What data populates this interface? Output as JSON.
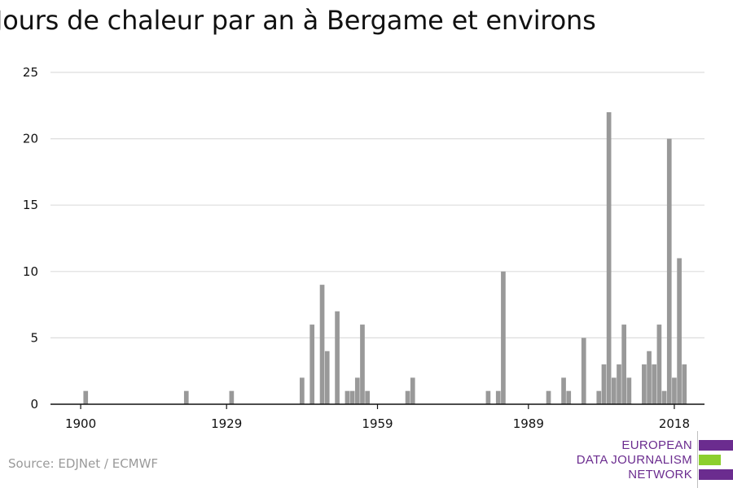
{
  "title": "Jours de chaleur par an à Bergame et environs",
  "source": "Source: EDJNet / ECMWF",
  "logo": {
    "line1": "EUROPEAN",
    "line2": "DATA JOURNALISM",
    "line3": "NETWORK",
    "colors": {
      "purple": "#6b2c8f",
      "green": "#8ccf2e"
    }
  },
  "colors": {
    "bar": "#999999",
    "grid": "#dddddd",
    "axis": "#111111"
  },
  "chart_data": {
    "type": "bar",
    "title": "Jours de chaleur par an à Bergame et environs",
    "xlabel": "",
    "ylabel": "",
    "xlim": [
      1894,
      2024
    ],
    "ylim": [
      0,
      25
    ],
    "yticks": [
      0,
      5,
      10,
      15,
      20,
      25
    ],
    "xticks": [
      1900,
      1929,
      1959,
      1989,
      2018
    ],
    "grid": true,
    "bar_color": "#999999",
    "x": [
      1901,
      1921,
      1930,
      1944,
      1946,
      1948,
      1949,
      1951,
      1953,
      1954,
      1955,
      1956,
      1957,
      1958,
      1965,
      1966,
      1981,
      1983,
      1984,
      1993,
      1996,
      1997,
      2000,
      2003,
      2004,
      2005,
      2006,
      2007,
      2008,
      2009,
      2012,
      2013,
      2014,
      2015,
      2016,
      2017,
      2018,
      2019,
      2020
    ],
    "values": [
      1,
      1,
      1,
      2,
      6,
      9,
      4,
      7,
      1,
      1,
      2,
      6,
      1,
      0,
      1,
      2,
      1,
      1,
      10,
      1,
      2,
      1,
      5,
      1,
      3,
      22,
      2,
      3,
      6,
      2,
      3,
      4,
      3,
      6,
      1,
      20,
      2,
      11,
      3
    ]
  }
}
